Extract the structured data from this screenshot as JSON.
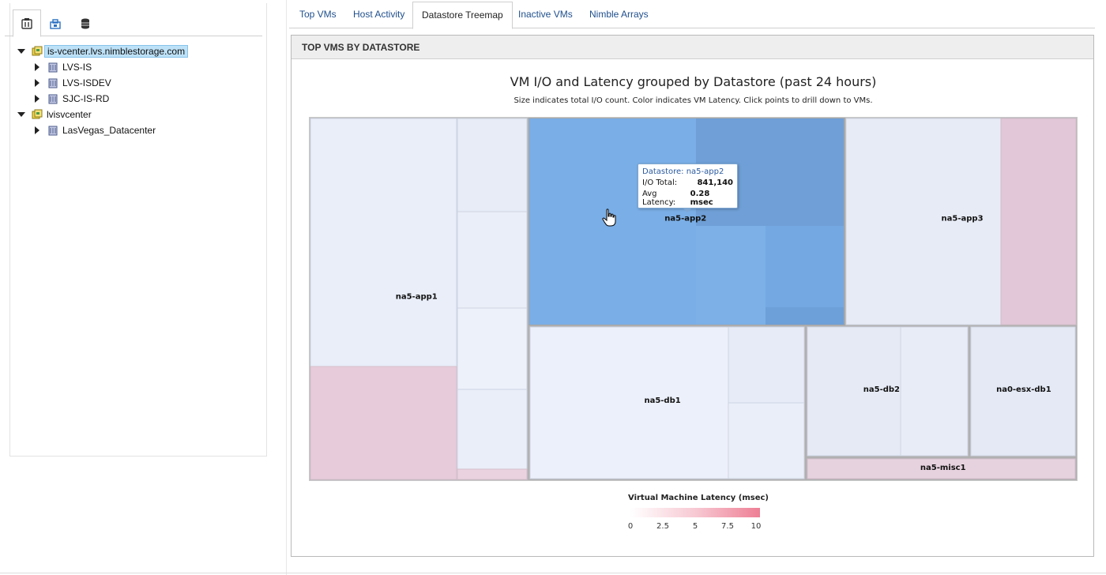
{
  "nav": {
    "tabs": [
      {
        "icon": "hosts-clusters-icon",
        "active": true
      },
      {
        "icon": "vms-templates-icon",
        "active": false
      },
      {
        "icon": "storage-icon",
        "active": false
      }
    ],
    "tree": [
      {
        "label": "is-vcenter.lvs.nimblestorage.com",
        "level": 0,
        "expanded": true,
        "selected": true,
        "icon": "vcenter-icon"
      },
      {
        "label": "LVS-IS",
        "level": 1,
        "expanded": false,
        "selected": false,
        "icon": "datacenter-icon"
      },
      {
        "label": "LVS-ISDEV",
        "level": 1,
        "expanded": false,
        "selected": false,
        "icon": "datacenter-icon"
      },
      {
        "label": "SJC-IS-RD",
        "level": 1,
        "expanded": false,
        "selected": false,
        "icon": "datacenter-icon"
      },
      {
        "label": "lvisvcenter",
        "level": 0,
        "expanded": true,
        "selected": false,
        "icon": "vcenter-icon"
      },
      {
        "label": "LasVegas_Datacenter",
        "level": 1,
        "expanded": false,
        "selected": false,
        "icon": "datacenter-icon"
      }
    ]
  },
  "tabs": [
    {
      "label": "Top VMs",
      "active": false
    },
    {
      "label": "Host Activity",
      "active": false
    },
    {
      "label": "Datastore Treemap",
      "active": true
    },
    {
      "label": "Inactive VMs",
      "active": false
    },
    {
      "label": "Nimble Arrays",
      "active": false
    }
  ],
  "panel": {
    "header": "TOP VMS BY DATASTORE",
    "title": "VM I/O and Latency grouped by Datastore (past 24 hours)",
    "subtitle": "Size indicates total I/O count. Color indicates VM Latency. Click points to drill down to VMs."
  },
  "tooltip": {
    "title": "Datastore: na5-app2",
    "io_label": "I/O Total:",
    "io_value": "841,140",
    "latency_label": "Avg Latency:",
    "latency_value": "0.28 msec"
  },
  "legend": {
    "title": "Virtual Machine Latency (msec)",
    "ticks": [
      "0",
      "2.5",
      "5",
      "7.5",
      "10"
    ]
  },
  "colors": {
    "low_latency": "#e8eef9",
    "highlight": "#72a4e0",
    "high_latency": "#e6ccdb",
    "link": "#1f4f8c"
  },
  "treemap": {
    "datastores": [
      {
        "name": "na5-app1",
        "label_cx": 0.14,
        "label_cy": 0.5
      },
      {
        "name": "na5-app2",
        "label_cx": 0.49,
        "label_cy": 0.285
      },
      {
        "name": "na5-app3",
        "label_cx": 0.85,
        "label_cy": 0.285
      },
      {
        "name": "na5-db1",
        "label_cx": 0.46,
        "label_cy": 0.785
      },
      {
        "name": "na5-db2",
        "label_cx": 0.745,
        "label_cy": 0.755
      },
      {
        "name": "na0-esx-db1",
        "label_cx": 0.93,
        "label_cy": 0.755
      },
      {
        "name": "na5-misc1",
        "label_cx": 0.825,
        "label_cy": 0.97
      }
    ]
  }
}
